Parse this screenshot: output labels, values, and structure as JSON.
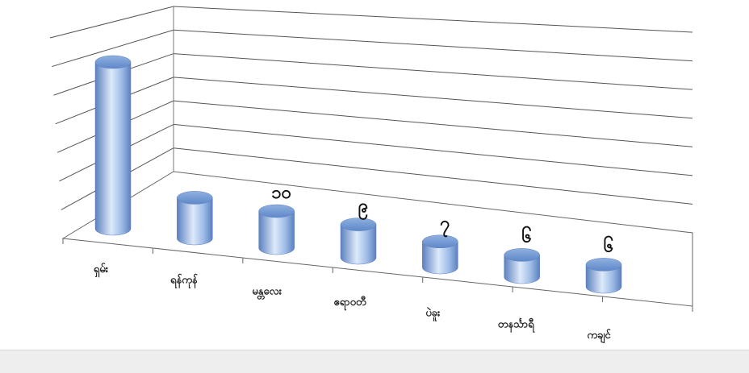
{
  "chart_data": {
    "type": "bar",
    "style": "3d-cylinder",
    "title": "",
    "xlabel": "",
    "ylabel": "",
    "grid": true,
    "legend": "none",
    "categories": [
      "ရှမ်း",
      "ရန်ကုန်",
      "မန္တလေး",
      "ဧရာဝတီ",
      "ပဲခူး",
      "တနင်္သာရီ",
      "ကချင်"
    ],
    "values": [
      45,
      11,
      10,
      9,
      7,
      6,
      6
    ],
    "data_labels": [
      "",
      "",
      "၁၀",
      "၉",
      "၇",
      "၆",
      "၆"
    ],
    "ylim": [
      0,
      50
    ],
    "bar_color": "#6f97d3"
  }
}
